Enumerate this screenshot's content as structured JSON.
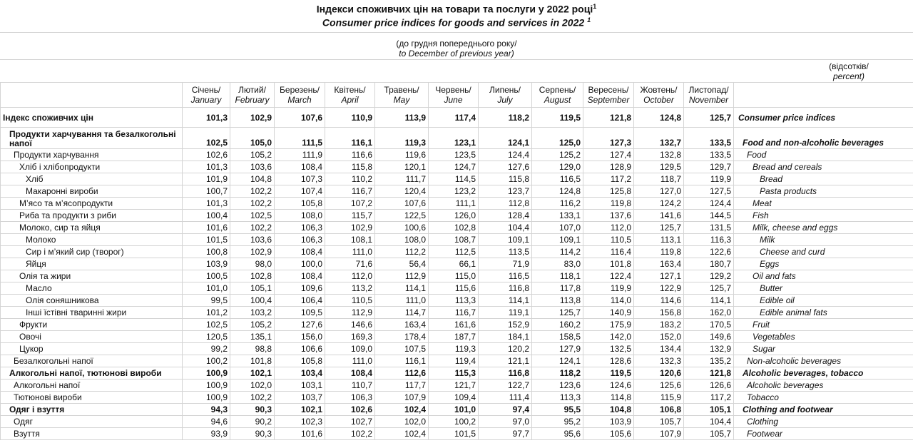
{
  "header": {
    "title_uk": "Індекси споживчих цін на товари та послуги у 2022 році",
    "title_en": "Consumer price indices for goods and services in 2022",
    "footnote": "1",
    "subtitle_uk": "(до грудня попереднього року/",
    "subtitle_en": "to December of previous year)",
    "unit_uk": "(відсотків/",
    "unit_en": "percent)"
  },
  "table": {
    "columns": [
      {
        "uk": "Січень/",
        "en": "January"
      },
      {
        "uk": "Лютий/",
        "en": "February"
      },
      {
        "uk": "Березень/",
        "en": "March"
      },
      {
        "uk": "Квітень/",
        "en": "April"
      },
      {
        "uk": "Травень/",
        "en": "May"
      },
      {
        "uk": "Червень/",
        "en": "June"
      },
      {
        "uk": "Липень/",
        "en": "July"
      },
      {
        "uk": "Серпень/",
        "en": "August"
      },
      {
        "uk": "Вересень/",
        "en": "September"
      },
      {
        "uk": "Жовтень/",
        "en": "October"
      },
      {
        "uk": "Листопад/",
        "en": "November"
      }
    ],
    "rows": [
      {
        "uk": "Індекс споживчих цін",
        "en": "Consumer price indices",
        "level": 0,
        "bold": true,
        "values": [
          "101,3",
          "102,9",
          "107,6",
          "110,9",
          "113,9",
          "117,4",
          "118,2",
          "119,5",
          "121,8",
          "124,8",
          "125,7"
        ]
      },
      {
        "uk": "Продукти харчування та безалкогольні напої",
        "en": "Food and non-alcoholic beverages",
        "level": 0,
        "bold": true,
        "values": [
          "102,5",
          "105,0",
          "111,5",
          "116,1",
          "119,3",
          "123,1",
          "124,1",
          "125,0",
          "127,3",
          "132,7",
          "133,5"
        ]
      },
      {
        "uk": "Продукти харчування",
        "en": "Food",
        "level": 1,
        "bold": false,
        "values": [
          "102,6",
          "105,2",
          "111,9",
          "116,6",
          "119,6",
          "123,5",
          "124,4",
          "125,2",
          "127,4",
          "132,8",
          "133,5"
        ]
      },
      {
        "uk": "Хліб і хлібопродукти",
        "en": "Bread and cereals",
        "level": 2,
        "bold": false,
        "values": [
          "101,3",
          "103,6",
          "108,4",
          "115,8",
          "120,1",
          "124,7",
          "127,6",
          "129,0",
          "128,9",
          "129,5",
          "129,7"
        ]
      },
      {
        "uk": "Хліб",
        "en": "Bread",
        "level": 3,
        "bold": false,
        "values": [
          "101,9",
          "104,8",
          "107,3",
          "110,2",
          "111,7",
          "114,5",
          "115,8",
          "116,5",
          "117,2",
          "118,7",
          "119,9"
        ]
      },
      {
        "uk": "Макаронні вироби",
        "en": "Pasta products",
        "level": 3,
        "bold": false,
        "values": [
          "100,7",
          "102,2",
          "107,4",
          "116,7",
          "120,4",
          "123,2",
          "123,7",
          "124,8",
          "125,8",
          "127,0",
          "127,5"
        ]
      },
      {
        "uk": "М’ясо та м’ясопродукти",
        "en": "Meat",
        "level": 2,
        "bold": false,
        "values": [
          "101,3",
          "102,2",
          "105,8",
          "107,2",
          "107,6",
          "111,1",
          "112,8",
          "116,2",
          "119,8",
          "124,2",
          "124,4"
        ]
      },
      {
        "uk": "Риба та продукти з риби",
        "en": "Fish",
        "level": 2,
        "bold": false,
        "values": [
          "100,4",
          "102,5",
          "108,0",
          "115,7",
          "122,5",
          "126,0",
          "128,4",
          "133,1",
          "137,6",
          "141,6",
          "144,5"
        ]
      },
      {
        "uk": "Молоко, сир та яйця",
        "en": "Milk, cheese and eggs",
        "level": 2,
        "bold": false,
        "values": [
          "101,6",
          "102,2",
          "106,3",
          "102,9",
          "100,6",
          "102,8",
          "104,4",
          "107,0",
          "112,0",
          "125,7",
          "131,5"
        ]
      },
      {
        "uk": "Молоко",
        "en": "Milk",
        "level": 3,
        "bold": false,
        "values": [
          "101,5",
          "103,6",
          "106,3",
          "108,1",
          "108,0",
          "108,7",
          "109,1",
          "109,1",
          "110,5",
          "113,1",
          "116,3"
        ]
      },
      {
        "uk": "Сир і м’який сир (творог)",
        "en": "Cheese and curd",
        "level": 3,
        "bold": false,
        "values": [
          "100,8",
          "102,9",
          "108,4",
          "111,0",
          "112,2",
          "112,5",
          "113,5",
          "114,2",
          "116,4",
          "119,8",
          "122,6"
        ]
      },
      {
        "uk": "Яйця",
        "en": "Eggs",
        "level": 3,
        "bold": false,
        "values": [
          "103,9",
          "98,0",
          "100,0",
          "71,6",
          "56,4",
          "66,1",
          "71,9",
          "83,0",
          "101,8",
          "163,4",
          "180,7"
        ]
      },
      {
        "uk": "Олія та жири",
        "en": "Oil and fats",
        "level": 2,
        "bold": false,
        "values": [
          "100,5",
          "102,8",
          "108,4",
          "112,0",
          "112,9",
          "115,0",
          "116,5",
          "118,1",
          "122,4",
          "127,1",
          "129,2"
        ]
      },
      {
        "uk": "Масло",
        "en": "Butter",
        "level": 3,
        "bold": false,
        "values": [
          "101,0",
          "105,1",
          "109,6",
          "113,2",
          "114,1",
          "115,6",
          "116,8",
          "117,8",
          "119,9",
          "122,9",
          "125,7"
        ]
      },
      {
        "uk": "Олія соняшникова",
        "en": "Edible oil",
        "level": 3,
        "bold": false,
        "values": [
          "99,5",
          "100,4",
          "106,4",
          "110,5",
          "111,0",
          "113,3",
          "114,1",
          "113,8",
          "114,0",
          "114,6",
          "114,1"
        ]
      },
      {
        "uk": "Інші їстівні тваринні жири",
        "en": "Edible animal fats",
        "level": 3,
        "bold": false,
        "values": [
          "101,2",
          "103,2",
          "109,5",
          "112,9",
          "114,7",
          "116,7",
          "119,1",
          "125,7",
          "140,9",
          "156,8",
          "162,0"
        ]
      },
      {
        "uk": "Фрукти",
        "en": "Fruit",
        "level": 2,
        "bold": false,
        "values": [
          "102,5",
          "105,2",
          "127,6",
          "146,6",
          "163,4",
          "161,6",
          "152,9",
          "160,2",
          "175,9",
          "183,2",
          "170,5"
        ]
      },
      {
        "uk": "Овочі",
        "en": "Vegetables",
        "level": 2,
        "bold": false,
        "values": [
          "120,5",
          "135,1",
          "156,0",
          "169,3",
          "178,4",
          "187,7",
          "184,1",
          "158,5",
          "142,0",
          "152,0",
          "149,6"
        ]
      },
      {
        "uk": "Цукор",
        "en": "Sugar",
        "level": 2,
        "bold": false,
        "values": [
          "99,2",
          "98,8",
          "106,6",
          "109,0",
          "107,5",
          "119,3",
          "120,2",
          "127,9",
          "132,5",
          "134,4",
          "132,9"
        ]
      },
      {
        "uk": "Безалкогольні напої",
        "en": "Non-alcoholic beverages",
        "level": 1,
        "bold": false,
        "values": [
          "100,2",
          "101,8",
          "105,8",
          "111,0",
          "116,1",
          "119,4",
          "121,1",
          "124,1",
          "128,6",
          "132,3",
          "135,2"
        ]
      },
      {
        "uk": "Алкогольні напої, тютюнові вироби",
        "en": "Alcoholic beverages, tobacco",
        "level": 0,
        "bold": true,
        "values": [
          "100,9",
          "102,1",
          "103,4",
          "108,4",
          "112,6",
          "115,3",
          "116,8",
          "118,2",
          "119,5",
          "120,6",
          "121,8"
        ]
      },
      {
        "uk": "Алкогольні напої",
        "en": "Alcoholic beverages",
        "level": 1,
        "bold": false,
        "values": [
          "100,9",
          "102,0",
          "103,1",
          "110,7",
          "117,7",
          "121,7",
          "122,7",
          "123,6",
          "124,6",
          "125,6",
          "126,6"
        ]
      },
      {
        "uk": "Тютюнові вироби",
        "en": "Tobacco",
        "level": 1,
        "bold": false,
        "values": [
          "100,9",
          "102,2",
          "103,7",
          "106,3",
          "107,9",
          "109,4",
          "111,4",
          "113,3",
          "114,8",
          "115,9",
          "117,2"
        ]
      },
      {
        "uk": "Одяг і взуття",
        "en": "Clothing and footwear",
        "level": 0,
        "bold": true,
        "values": [
          "94,3",
          "90,3",
          "102,1",
          "102,6",
          "102,4",
          "101,0",
          "97,4",
          "95,5",
          "104,8",
          "106,8",
          "105,1"
        ]
      },
      {
        "uk": "Одяг",
        "en": "Clothing",
        "level": 1,
        "bold": false,
        "values": [
          "94,6",
          "90,2",
          "102,3",
          "102,7",
          "102,0",
          "100,2",
          "97,0",
          "95,2",
          "103,9",
          "105,7",
          "104,4"
        ]
      },
      {
        "uk": "Взуття",
        "en": "Footwear",
        "level": 1,
        "bold": false,
        "values": [
          "93,9",
          "90,3",
          "101,6",
          "102,2",
          "102,4",
          "101,5",
          "97,7",
          "95,6",
          "105,6",
          "107,9",
          "105,7"
        ]
      }
    ]
  }
}
